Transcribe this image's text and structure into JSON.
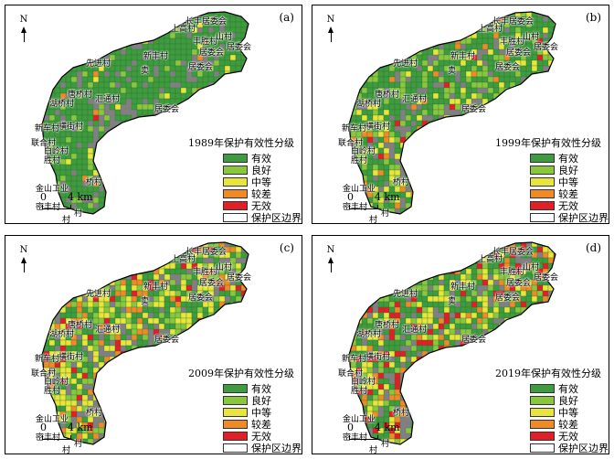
{
  "panels": [
    {
      "label": "(a)",
      "year_title": "1989年保护有效性分级",
      "mix": "a"
    },
    {
      "label": "(b)",
      "year_title": "1999年保护有效性分级",
      "mix": "b"
    },
    {
      "label": "(c)",
      "year_title": "2009年保护有效性分级",
      "mix": "c"
    },
    {
      "label": "(d)",
      "year_title": "2019年保护有效性分级",
      "mix": "d"
    }
  ],
  "north_label": "N",
  "scale": {
    "start": "0",
    "end": "4 km"
  },
  "legend": [
    {
      "label": "有效",
      "color": "#3e9b3e"
    },
    {
      "label": "良好",
      "color": "#8ac63f"
    },
    {
      "label": "中等",
      "color": "#e8e63c"
    },
    {
      "label": "较差",
      "color": "#ef8a2a"
    },
    {
      "label": "无效",
      "color": "#e21f26"
    },
    {
      "label": "保护区边界",
      "color": "#ffffff"
    }
  ],
  "places": [
    "长丰居委会",
    "上高村",
    "丰胜村",
    "山村",
    "居委会",
    "新丰村",
    "居委会",
    "先进村",
    "卖",
    "居委会",
    "唐桥村",
    "湖桥村",
    "汇通村",
    "横街村",
    "居委会",
    "新车村",
    "联合村",
    "白岭村",
    "胜村",
    "桥村",
    "金山工业",
    "密丰村",
    "村",
    "村"
  ],
  "colors": {
    "boundary": "#000000",
    "urban": "#808080"
  }
}
